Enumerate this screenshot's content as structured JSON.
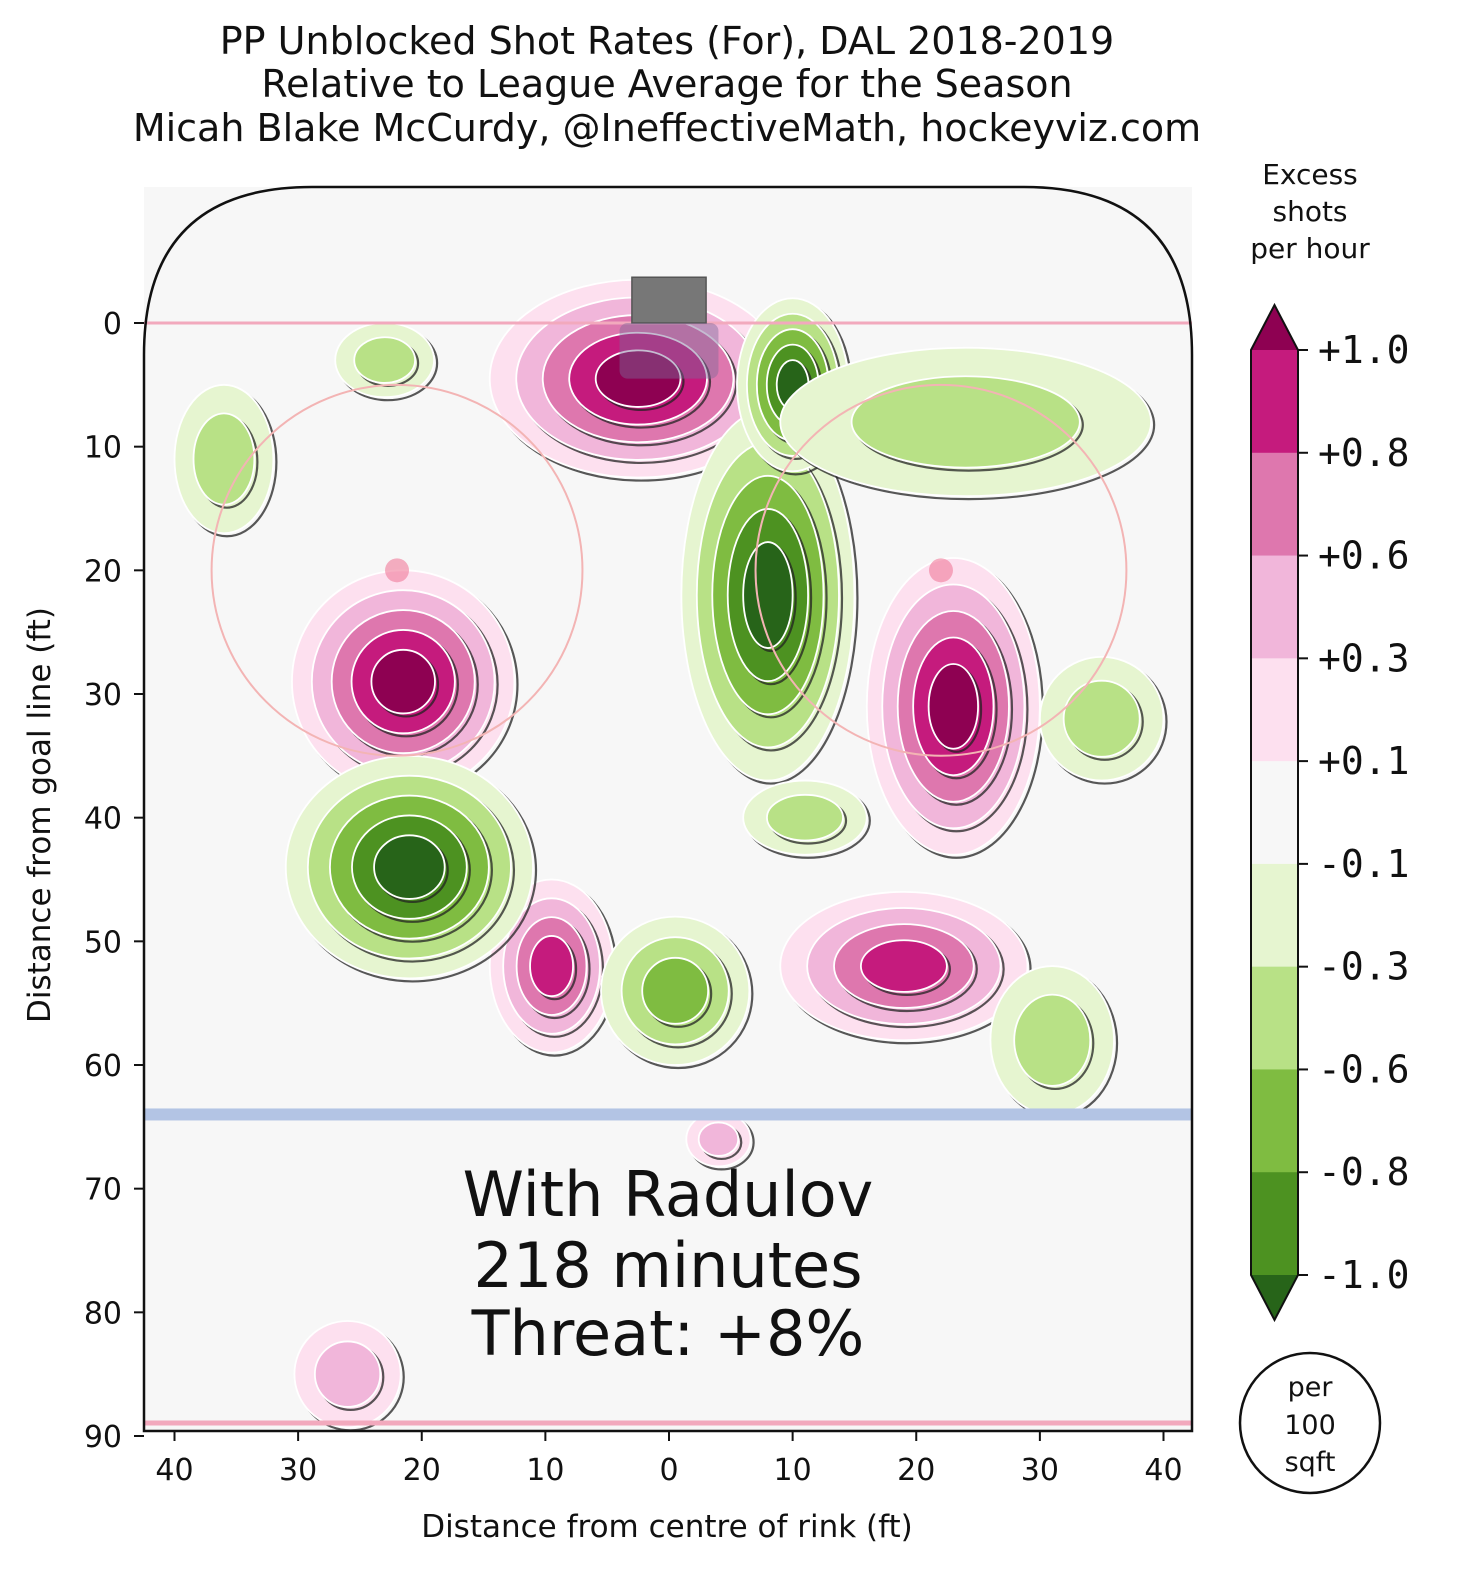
{
  "chart_data": {
    "type": "heatmap",
    "title": [
      "PP Unblocked Shot Rates (For), DAL 2018-2019",
      "Relative to League Average for the Season",
      "Micah Blake McCurdy, @IneffectiveMath, hockeyviz.com"
    ],
    "xlabel": "Distance from centre of rink (ft)",
    "ylabel": "Distance from goal line (ft)",
    "xlim": [
      -42.5,
      42.5
    ],
    "ylim": [
      90,
      -11
    ],
    "x_ticks": [
      -40,
      -30,
      -20,
      -10,
      0,
      10,
      20,
      30,
      40
    ],
    "x_tick_labels": [
      "40",
      "30",
      "20",
      "10",
      "0",
      "10",
      "20",
      "30",
      "40"
    ],
    "y_ticks": [
      0,
      10,
      20,
      30,
      40,
      50,
      60,
      70,
      80,
      90
    ],
    "y_tick_labels": [
      "0",
      "10",
      "20",
      "30",
      "40",
      "50",
      "60",
      "70",
      "80",
      "90"
    ],
    "colorbar": {
      "title": [
        "Excess",
        "shots",
        "per hour"
      ],
      "unit": [
        "per",
        "100",
        "sqft"
      ],
      "levels": [
        1.0,
        0.8,
        0.6,
        0.3,
        0.1,
        -0.1,
        -0.3,
        -0.6,
        -0.8,
        -1.0
      ],
      "level_labels": [
        "+1.0",
        "+0.8",
        "+0.6",
        "+0.3",
        "+0.1",
        "-0.1",
        "-0.3",
        "-0.6",
        "-0.8",
        "-1.0"
      ],
      "colors": [
        "#8e0152",
        "#c51b7d",
        "#de77ae",
        "#f1b6da",
        "#fde0ef",
        "#f7f7f7",
        "#e6f5d0",
        "#b8e186",
        "#7fbc41",
        "#4d9221",
        "#276419"
      ],
      "extend": "both"
    },
    "annotation": [
      "With Radulov",
      "218 minutes",
      "Threat: +8%"
    ],
    "blobs": [
      {
        "x": -2.5,
        "y": 4.5,
        "rx": 12,
        "ry": 8,
        "value": 1.0
      },
      {
        "x": -21.5,
        "y": 29,
        "rx": 9,
        "ry": 9,
        "value": 1.0
      },
      {
        "x": 23,
        "y": 31,
        "rx": 7,
        "ry": 12,
        "value": 1.0
      },
      {
        "x": -9.5,
        "y": 52,
        "rx": 5,
        "ry": 7,
        "value": 0.8
      },
      {
        "x": 19,
        "y": 52,
        "rx": 10,
        "ry": 6,
        "value": 0.8
      },
      {
        "x": 8,
        "y": 22,
        "rx": 7,
        "ry": 15,
        "value": -1.0
      },
      {
        "x": 10,
        "y": 5,
        "rx": 4.5,
        "ry": 7,
        "value": -1.0
      },
      {
        "x": -21,
        "y": 44,
        "rx": 10,
        "ry": 9,
        "value": -1.0
      },
      {
        "x": 0.5,
        "y": 54,
        "rx": 6,
        "ry": 6,
        "value": -0.6
      },
      {
        "x": 11,
        "y": 40,
        "rx": 5,
        "ry": 3,
        "value": -0.3
      },
      {
        "x": 4,
        "y": 66,
        "rx": 2.6,
        "ry": 2.2,
        "value": 0.3
      },
      {
        "x": -26,
        "y": 85,
        "rx": 4.3,
        "ry": 4.3,
        "value": 0.3
      },
      {
        "x": 31,
        "y": 58,
        "rx": 5,
        "ry": 6,
        "value": -0.3
      },
      {
        "x": 35,
        "y": 32,
        "rx": 5,
        "ry": 5,
        "value": -0.3
      },
      {
        "x": -36,
        "y": 11,
        "rx": 4,
        "ry": 6,
        "value": -0.3
      },
      {
        "x": 24,
        "y": 8,
        "rx": 15,
        "ry": 6,
        "value": -0.3
      },
      {
        "x": -23,
        "y": 3,
        "rx": 4,
        "ry": 3,
        "value": -0.3
      }
    ],
    "rink": {
      "goal_line_y": 0,
      "blue_line_y": 64,
      "faceoff_dots": [
        {
          "x": -22,
          "y": 20
        },
        {
          "x": 22,
          "y": 20
        }
      ],
      "faceoff_circle_radius": 15
    }
  }
}
